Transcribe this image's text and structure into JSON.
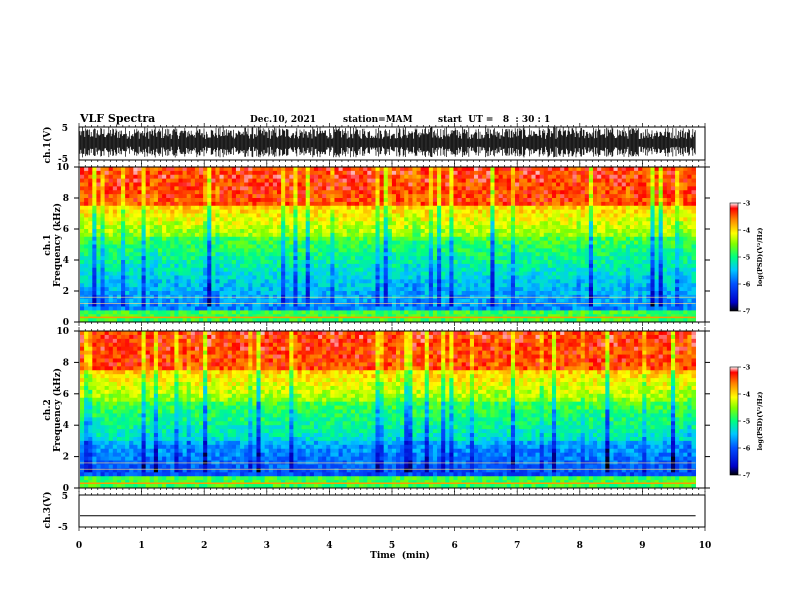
{
  "header": {
    "title": "VLF Spectra",
    "date": "Dec.10, 2021",
    "station": "station=MAM",
    "start": "start  UT =   8  : 30 : 1"
  },
  "chart_data": [
    {
      "type": "line",
      "panel": "ch1-waveform",
      "ylabel": "ch.1(V)",
      "ylim": [
        -5,
        5
      ],
      "yticks": [
        "5",
        "-5"
      ],
      "xlim": [
        0,
        10
      ]
    },
    {
      "type": "heatmap",
      "panel": "ch1-spectrogram",
      "ylabel_line1": "ch.1",
      "ylabel_line2": "Frequency (kHz)",
      "ylim": [
        0,
        10
      ],
      "yticks": [
        "0",
        "2",
        "4",
        "6",
        "8",
        "10"
      ],
      "xlim": [
        0,
        10
      ],
      "data_end_min": 9.85,
      "colorbar": {
        "label": "log(PSD)(V²/Hz)",
        "range": [
          -7,
          -3
        ],
        "ticks": [
          "-3",
          "-4",
          "-5",
          "-6",
          "-7"
        ]
      }
    },
    {
      "type": "heatmap",
      "panel": "ch2-spectrogram",
      "ylabel_line1": "ch.2",
      "ylabel_line2": "Frequency (kHz)",
      "ylim": [
        0,
        10
      ],
      "yticks": [
        "0",
        "2",
        "4",
        "6",
        "8",
        "10"
      ],
      "xlim": [
        0,
        10
      ],
      "data_end_min": 9.85,
      "colorbar": {
        "label": "log(PSD)(V²/Hz)",
        "range": [
          -7,
          -3
        ],
        "ticks": [
          "-3",
          "-4",
          "-5",
          "-6",
          "-7"
        ]
      }
    },
    {
      "type": "line",
      "panel": "ch3-waveform",
      "ylabel": "ch.3(V)",
      "ylim": [
        -5,
        5
      ],
      "yticks": [
        "5",
        "-5"
      ],
      "value": -1.5,
      "xlim": [
        0,
        10
      ]
    }
  ],
  "xaxis": {
    "label": "Time  (min)",
    "ticks": [
      "0",
      "1",
      "2",
      "3",
      "4",
      "5",
      "6",
      "7",
      "8",
      "9",
      "10"
    ]
  }
}
